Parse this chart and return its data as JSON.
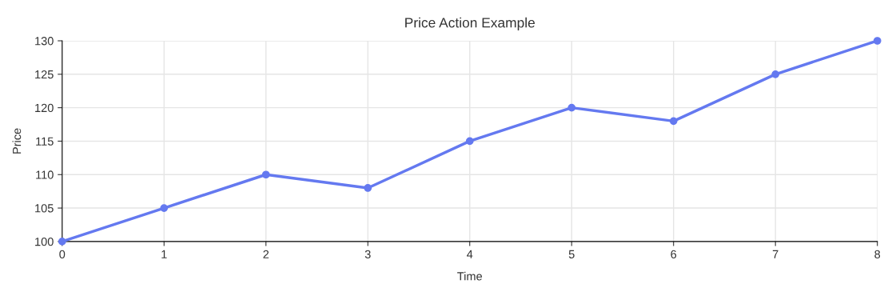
{
  "chart_data": {
    "type": "line",
    "title": "Price Action Example",
    "xlabel": "Time",
    "ylabel": "Price",
    "x": [
      0,
      1,
      2,
      3,
      4,
      5,
      6,
      7,
      8
    ],
    "series": [
      {
        "color": "#6479f0",
        "values": [
          100,
          105,
          110,
          108,
          115,
          120,
          118,
          125,
          130
        ]
      }
    ],
    "xlim": [
      0,
      8
    ],
    "xticks": [
      0,
      1,
      2,
      3,
      4,
      5,
      6,
      7,
      8
    ],
    "ylim": [
      100,
      130
    ],
    "yticks": [
      100,
      105,
      110,
      115,
      120,
      125,
      130
    ],
    "grid": true,
    "marker": "circle",
    "line_style": "solid",
    "legend": false
  }
}
